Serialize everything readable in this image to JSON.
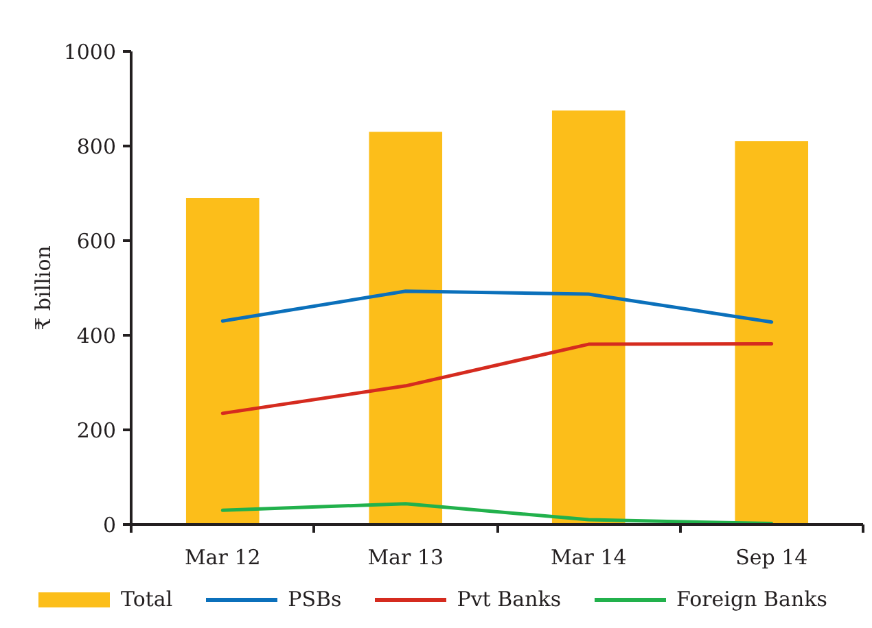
{
  "chart_data": {
    "type": "bar",
    "ylabel": "₹ billion",
    "categories": [
      "Mar 12",
      "Mar 13",
      "Mar 14",
      "Sep 14"
    ],
    "ylim": [
      0,
      1000
    ],
    "yticks": [
      0,
      200,
      400,
      600,
      800,
      1000
    ],
    "grid": false,
    "legend": "bottom",
    "line_style": "solid",
    "series": [
      {
        "name": "Total",
        "color": "#fcbe1a",
        "values": [
          690,
          830,
          875,
          810
        ]
      },
      {
        "name": "PSBs",
        "type": "line",
        "color": "#0b70bb",
        "values": [
          430,
          493,
          487,
          428
        ]
      },
      {
        "name": "Pvt Banks",
        "type": "line",
        "color": "#d52b1f",
        "values": [
          235,
          293,
          381,
          382
        ]
      },
      {
        "name": "Foreign Banks",
        "type": "line",
        "color": "#22b14c",
        "values": [
          30,
          44,
          10,
          2
        ]
      }
    ]
  }
}
